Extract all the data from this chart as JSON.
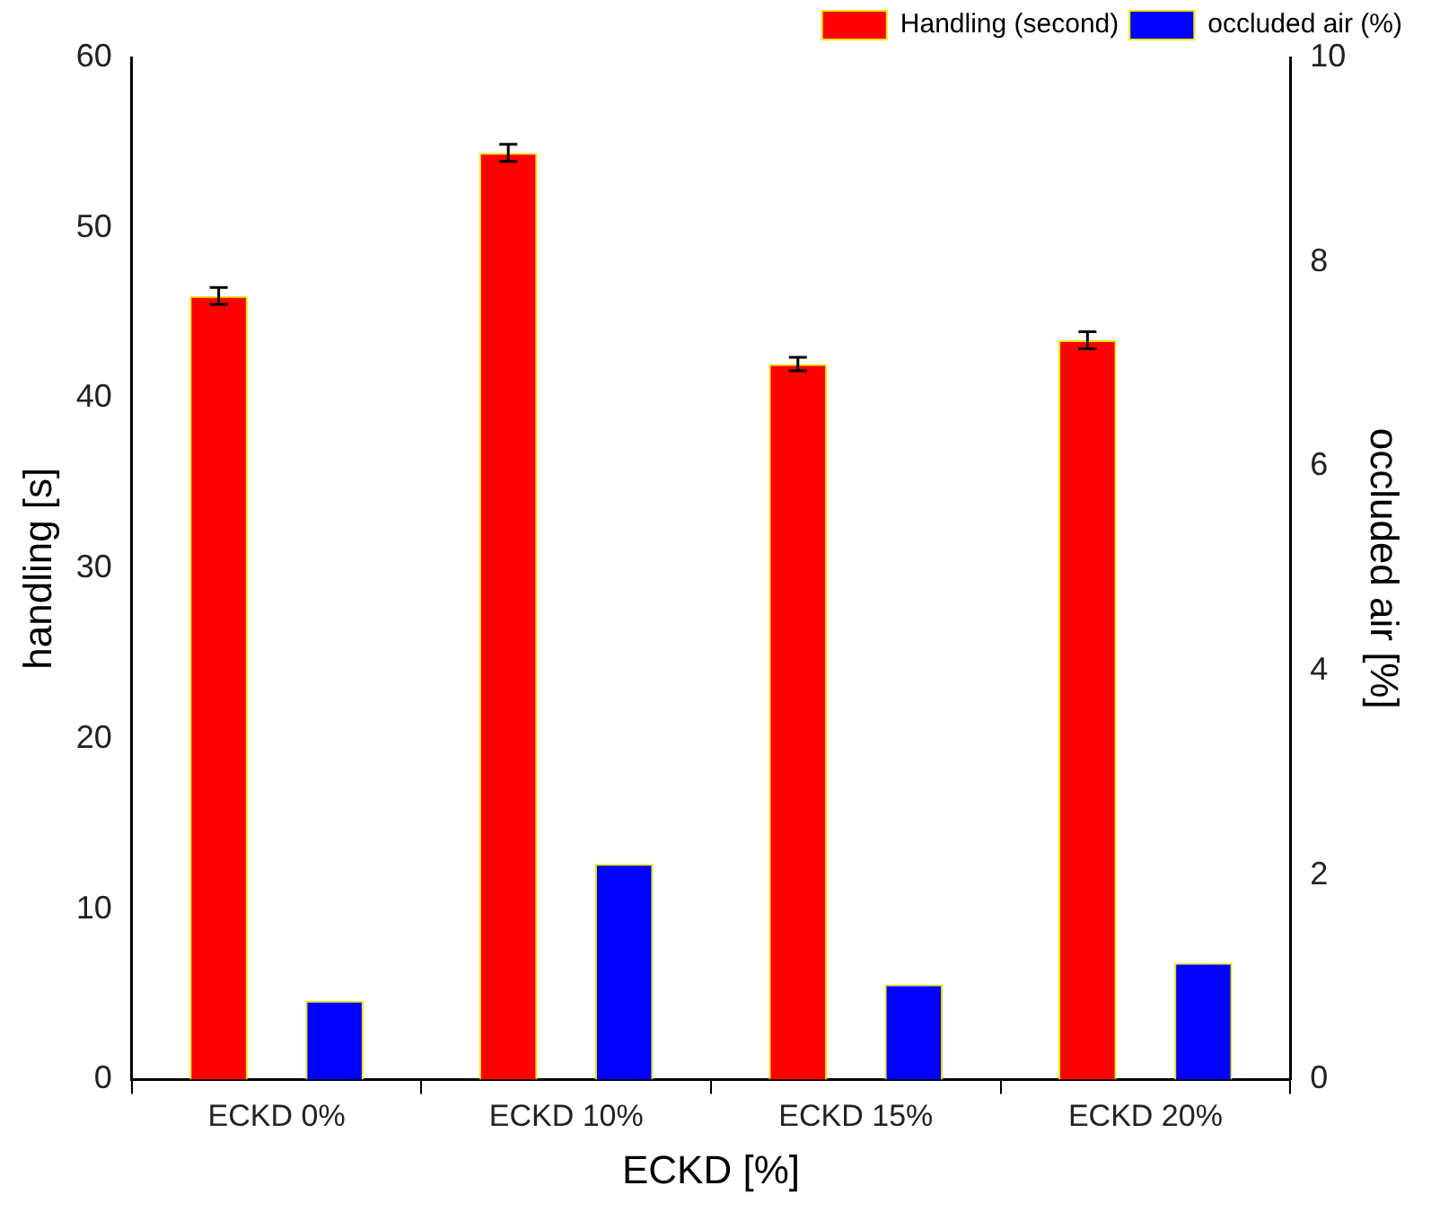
{
  "chart_data": {
    "type": "bar",
    "xlabel": "ECKD [%]",
    "ylabel": "handling [s]",
    "y2label": "occluded air [%]",
    "categories": [
      "ECKD 0%",
      "ECKD 10%",
      "ECKD 15%",
      "ECKD 20%"
    ],
    "series": [
      {
        "name": "Handling (second)",
        "color": "#ff0000",
        "values": [
          46.0,
          54.4,
          42.0,
          43.4
        ],
        "errors": [
          0.5,
          0.5,
          0.4,
          0.5
        ]
      },
      {
        "name": "occluded air (%)",
        "color": "#0000ff",
        "values": [
          0.77,
          2.11,
          0.93,
          1.14
        ],
        "axis": "y2"
      }
    ],
    "ylim": [
      0,
      60
    ],
    "yticks": [
      0,
      10,
      20,
      30,
      40,
      50,
      60
    ],
    "y2lim": [
      0,
      10
    ],
    "y2ticks": [
      0,
      2,
      4,
      6,
      8,
      10
    ],
    "grid": false,
    "legend": "top right"
  }
}
